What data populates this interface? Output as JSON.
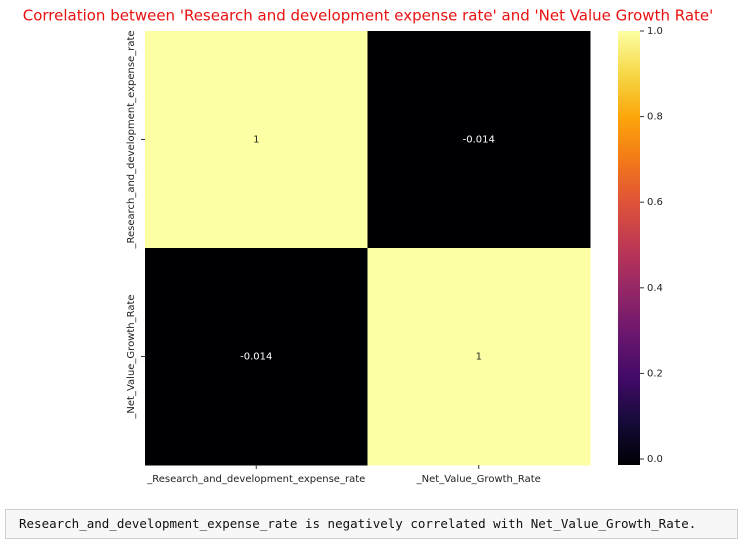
{
  "chart_data": {
    "type": "heatmap",
    "title": "Correlation between 'Research and development expense rate' and  'Net Value Growth Rate'",
    "x_categories": [
      "_Research_and_development_expense_rate",
      "_Net_Value_Growth_Rate"
    ],
    "y_categories": [
      "_Research_and_development_expense_rate",
      "_Net_Value_Growth_Rate"
    ],
    "values": [
      [
        1,
        -0.014
      ],
      [
        -0.014,
        1
      ]
    ],
    "colormap": "inferno",
    "clim": [
      -0.014,
      1
    ],
    "cticks": [
      {
        "value": 0,
        "label": "0.0"
      },
      0.2,
      0.4,
      0.6,
      0.8,
      {
        "value": 1,
        "label": "1.0"
      }
    ]
  },
  "output": "Research_and_development_expense_rate is negatively correlated with Net_Value_Growth_Rate."
}
